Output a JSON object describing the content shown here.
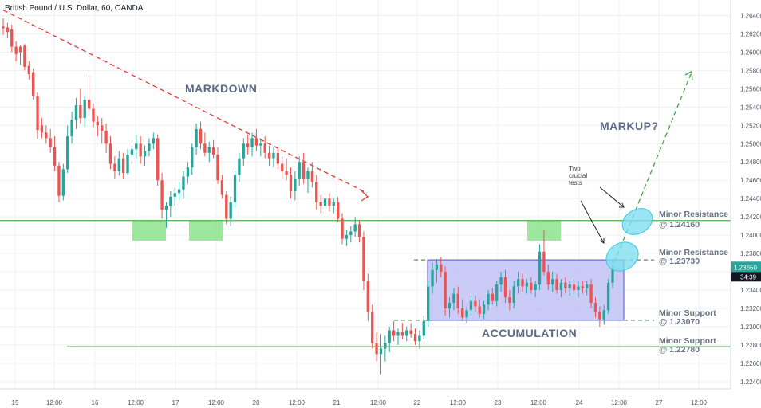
{
  "header": {
    "title": "British Pound / U.S. Dollar, 60, OANDA"
  },
  "colors": {
    "up": "#26a69a",
    "down": "#ef5350",
    "grid": "#eef0f3",
    "green_line": "#4caf50",
    "green_zone": "#8ee28e",
    "box_fill": "#b9b9f5",
    "box_stroke": "#6a6ad8",
    "ellipse": "#7fdff0",
    "red_dash": "#e53935",
    "current_price_bg": "#26a69a",
    "timer_bg": "#131722"
  },
  "chart_data": {
    "type": "candlestick",
    "symbol": "GBP/USD",
    "timeframe": "60",
    "ylim": [
      1.2232,
      1.2657
    ],
    "y_ticks": [
      "1.26400",
      "1.26200",
      "1.26000",
      "1.25800",
      "1.25600",
      "1.25400",
      "1.25200",
      "1.25000",
      "1.24800",
      "1.24600",
      "1.24400",
      "1.24200",
      "1.24000",
      "1.23800",
      "1.23600",
      "1.23400",
      "1.23200",
      "1.23000",
      "1.22800",
      "1.22600",
      "1.22400"
    ],
    "x_ticks": [
      "15",
      "12:00",
      "16",
      "12:00",
      "17",
      "12:00",
      "20",
      "12:00",
      "21",
      "12:00",
      "22",
      "12:00",
      "23",
      "12:00",
      "24",
      "12:00",
      "27",
      "12:00"
    ],
    "candles": [
      {
        "o": 1.2628,
        "h": 1.2637,
        "l": 1.2619,
        "c": 1.2626
      },
      {
        "o": 1.2627,
        "h": 1.2632,
        "l": 1.2615,
        "c": 1.2622
      },
      {
        "o": 1.2625,
        "h": 1.263,
        "l": 1.26,
        "c": 1.2606
      },
      {
        "o": 1.2606,
        "h": 1.2612,
        "l": 1.259,
        "c": 1.2598
      },
      {
        "o": 1.2606,
        "h": 1.2608,
        "l": 1.2586,
        "c": 1.26
      },
      {
        "o": 1.2607,
        "h": 1.2609,
        "l": 1.258,
        "c": 1.2584
      },
      {
        "o": 1.2585,
        "h": 1.259,
        "l": 1.257,
        "c": 1.2576
      },
      {
        "o": 1.2578,
        "h": 1.2582,
        "l": 1.2548,
        "c": 1.2552
      },
      {
        "o": 1.2552,
        "h": 1.2556,
        "l": 1.2505,
        "c": 1.2515
      },
      {
        "o": 1.252,
        "h": 1.2528,
        "l": 1.2506,
        "c": 1.2512
      },
      {
        "o": 1.2512,
        "h": 1.252,
        "l": 1.25,
        "c": 1.2506
      },
      {
        "o": 1.2506,
        "h": 1.2516,
        "l": 1.249,
        "c": 1.2496
      },
      {
        "o": 1.2496,
        "h": 1.2508,
        "l": 1.247,
        "c": 1.2476
      },
      {
        "o": 1.2476,
        "h": 1.248,
        "l": 1.2436,
        "c": 1.2443
      },
      {
        "o": 1.2443,
        "h": 1.2478,
        "l": 1.2438,
        "c": 1.2472
      },
      {
        "o": 1.2472,
        "h": 1.252,
        "l": 1.2468,
        "c": 1.2508
      },
      {
        "o": 1.2508,
        "h": 1.2535,
        "l": 1.25,
        "c": 1.2526
      },
      {
        "o": 1.2526,
        "h": 1.255,
        "l": 1.2516,
        "c": 1.2542
      },
      {
        "o": 1.2542,
        "h": 1.256,
        "l": 1.2522,
        "c": 1.2528
      },
      {
        "o": 1.2528,
        "h": 1.2552,
        "l": 1.2518,
        "c": 1.2548
      },
      {
        "o": 1.2548,
        "h": 1.2575,
        "l": 1.253,
        "c": 1.2538
      },
      {
        "o": 1.2538,
        "h": 1.2544,
        "l": 1.2518,
        "c": 1.2524
      },
      {
        "o": 1.2524,
        "h": 1.253,
        "l": 1.2508,
        "c": 1.252
      },
      {
        "o": 1.252,
        "h": 1.2528,
        "l": 1.25,
        "c": 1.2514
      },
      {
        "o": 1.2514,
        "h": 1.2522,
        "l": 1.249,
        "c": 1.25
      },
      {
        "o": 1.25,
        "h": 1.2508,
        "l": 1.2472,
        "c": 1.2478
      },
      {
        "o": 1.2478,
        "h": 1.2486,
        "l": 1.2462,
        "c": 1.247
      },
      {
        "o": 1.247,
        "h": 1.2492,
        "l": 1.2465,
        "c": 1.2484
      },
      {
        "o": 1.2484,
        "h": 1.249,
        "l": 1.2462,
        "c": 1.2468
      },
      {
        "o": 1.2468,
        "h": 1.2494,
        "l": 1.2466,
        "c": 1.2488
      },
      {
        "o": 1.2488,
        "h": 1.2498,
        "l": 1.2478,
        "c": 1.2494
      },
      {
        "o": 1.2494,
        "h": 1.251,
        "l": 1.2484,
        "c": 1.25
      },
      {
        "o": 1.25,
        "h": 1.2508,
        "l": 1.2478,
        "c": 1.2486
      },
      {
        "o": 1.2486,
        "h": 1.2498,
        "l": 1.2476,
        "c": 1.2492
      },
      {
        "o": 1.2492,
        "h": 1.2506,
        "l": 1.2486,
        "c": 1.25
      },
      {
        "o": 1.25,
        "h": 1.2512,
        "l": 1.2494,
        "c": 1.2506
      },
      {
        "o": 1.2506,
        "h": 1.251,
        "l": 1.2454,
        "c": 1.246
      },
      {
        "o": 1.246,
        "h": 1.2468,
        "l": 1.2418,
        "c": 1.2428
      },
      {
        "o": 1.2428,
        "h": 1.2436,
        "l": 1.2408,
        "c": 1.2432
      },
      {
        "o": 1.2432,
        "h": 1.2448,
        "l": 1.242,
        "c": 1.2442
      },
      {
        "o": 1.2442,
        "h": 1.2452,
        "l": 1.2432,
        "c": 1.2446
      },
      {
        "o": 1.2446,
        "h": 1.2458,
        "l": 1.2438,
        "c": 1.245
      },
      {
        "o": 1.245,
        "h": 1.247,
        "l": 1.244,
        "c": 1.2464
      },
      {
        "o": 1.2464,
        "h": 1.248,
        "l": 1.2456,
        "c": 1.2474
      },
      {
        "o": 1.2474,
        "h": 1.25,
        "l": 1.2466,
        "c": 1.2496
      },
      {
        "o": 1.2496,
        "h": 1.2522,
        "l": 1.2488,
        "c": 1.2516
      },
      {
        "o": 1.2516,
        "h": 1.2524,
        "l": 1.2494,
        "c": 1.25
      },
      {
        "o": 1.25,
        "h": 1.2512,
        "l": 1.2486,
        "c": 1.249
      },
      {
        "o": 1.249,
        "h": 1.2502,
        "l": 1.248,
        "c": 1.2496
      },
      {
        "o": 1.2496,
        "h": 1.2504,
        "l": 1.2484,
        "c": 1.2488
      },
      {
        "o": 1.2488,
        "h": 1.2496,
        "l": 1.2456,
        "c": 1.246
      },
      {
        "o": 1.246,
        "h": 1.2466,
        "l": 1.244,
        "c": 1.2444
      },
      {
        "o": 1.2444,
        "h": 1.2448,
        "l": 1.2412,
        "c": 1.2418
      },
      {
        "o": 1.2418,
        "h": 1.2442,
        "l": 1.241,
        "c": 1.2436
      },
      {
        "o": 1.2436,
        "h": 1.247,
        "l": 1.243,
        "c": 1.2466
      },
      {
        "o": 1.2466,
        "h": 1.249,
        "l": 1.2458,
        "c": 1.2484
      },
      {
        "o": 1.2484,
        "h": 1.2506,
        "l": 1.2476,
        "c": 1.25
      },
      {
        "o": 1.25,
        "h": 1.251,
        "l": 1.2488,
        "c": 1.2496
      },
      {
        "o": 1.2496,
        "h": 1.2512,
        "l": 1.2486,
        "c": 1.2506
      },
      {
        "o": 1.2506,
        "h": 1.2516,
        "l": 1.2492,
        "c": 1.2498
      },
      {
        "o": 1.2498,
        "h": 1.2506,
        "l": 1.2486,
        "c": 1.25
      },
      {
        "o": 1.25,
        "h": 1.2508,
        "l": 1.2484,
        "c": 1.249
      },
      {
        "o": 1.249,
        "h": 1.2498,
        "l": 1.2476,
        "c": 1.2484
      },
      {
        "o": 1.2484,
        "h": 1.2496,
        "l": 1.2474,
        "c": 1.249
      },
      {
        "o": 1.249,
        "h": 1.2496,
        "l": 1.2472,
        "c": 1.2478
      },
      {
        "o": 1.2478,
        "h": 1.2486,
        "l": 1.2462,
        "c": 1.247
      },
      {
        "o": 1.247,
        "h": 1.2484,
        "l": 1.246,
        "c": 1.2466
      },
      {
        "o": 1.2466,
        "h": 1.2474,
        "l": 1.244,
        "c": 1.2448
      },
      {
        "o": 1.2448,
        "h": 1.247,
        "l": 1.2438,
        "c": 1.2462
      },
      {
        "o": 1.2462,
        "h": 1.2486,
        "l": 1.2454,
        "c": 1.248
      },
      {
        "o": 1.248,
        "h": 1.249,
        "l": 1.2456,
        "c": 1.2462
      },
      {
        "o": 1.2462,
        "h": 1.2474,
        "l": 1.2446,
        "c": 1.247
      },
      {
        "o": 1.247,
        "h": 1.248,
        "l": 1.2452,
        "c": 1.2458
      },
      {
        "o": 1.2458,
        "h": 1.2466,
        "l": 1.2428,
        "c": 1.2436
      },
      {
        "o": 1.2436,
        "h": 1.2444,
        "l": 1.2424,
        "c": 1.2432
      },
      {
        "o": 1.2432,
        "h": 1.2446,
        "l": 1.2426,
        "c": 1.244
      },
      {
        "o": 1.244,
        "h": 1.2446,
        "l": 1.2426,
        "c": 1.2432
      },
      {
        "o": 1.2432,
        "h": 1.244,
        "l": 1.2424,
        "c": 1.2436
      },
      {
        "o": 1.2436,
        "h": 1.2442,
        "l": 1.2414,
        "c": 1.2418
      },
      {
        "o": 1.2418,
        "h": 1.2424,
        "l": 1.239,
        "c": 1.2396
      },
      {
        "o": 1.2396,
        "h": 1.2406,
        "l": 1.2388,
        "c": 1.24
      },
      {
        "o": 1.24,
        "h": 1.241,
        "l": 1.2392,
        "c": 1.2404
      },
      {
        "o": 1.2404,
        "h": 1.242,
        "l": 1.2398,
        "c": 1.2412
      },
      {
        "o": 1.2412,
        "h": 1.2416,
        "l": 1.2392,
        "c": 1.2398
      },
      {
        "o": 1.2398,
        "h": 1.2404,
        "l": 1.234,
        "c": 1.235
      },
      {
        "o": 1.235,
        "h": 1.2358,
        "l": 1.2306,
        "c": 1.2316
      },
      {
        "o": 1.2316,
        "h": 1.2324,
        "l": 1.2276,
        "c": 1.2282
      },
      {
        "o": 1.2282,
        "h": 1.2294,
        "l": 1.2262,
        "c": 1.227
      },
      {
        "o": 1.227,
        "h": 1.2292,
        "l": 1.2248,
        "c": 1.2276
      },
      {
        "o": 1.2276,
        "h": 1.229,
        "l": 1.2262,
        "c": 1.2282
      },
      {
        "o": 1.2282,
        "h": 1.23,
        "l": 1.2272,
        "c": 1.2296
      },
      {
        "o": 1.2296,
        "h": 1.2306,
        "l": 1.2284,
        "c": 1.229
      },
      {
        "o": 1.229,
        "h": 1.2298,
        "l": 1.228,
        "c": 1.2294
      },
      {
        "o": 1.2294,
        "h": 1.2304,
        "l": 1.2286,
        "c": 1.229
      },
      {
        "o": 1.229,
        "h": 1.23,
        "l": 1.2284,
        "c": 1.2296
      },
      {
        "o": 1.2296,
        "h": 1.2304,
        "l": 1.2288,
        "c": 1.2292
      },
      {
        "o": 1.2292,
        "h": 1.2298,
        "l": 1.228,
        "c": 1.2284
      },
      {
        "o": 1.2284,
        "h": 1.2296,
        "l": 1.2276,
        "c": 1.229
      },
      {
        "o": 1.229,
        "h": 1.2312,
        "l": 1.2286,
        "c": 1.2306
      },
      {
        "o": 1.2306,
        "h": 1.235,
        "l": 1.23,
        "c": 1.2344
      },
      {
        "o": 1.2344,
        "h": 1.237,
        "l": 1.2336,
        "c": 1.2362
      },
      {
        "o": 1.2362,
        "h": 1.2374,
        "l": 1.2348,
        "c": 1.2368
      },
      {
        "o": 1.2368,
        "h": 1.2376,
        "l": 1.2354,
        "c": 1.236
      },
      {
        "o": 1.236,
        "h": 1.2366,
        "l": 1.2312,
        "c": 1.232
      },
      {
        "o": 1.232,
        "h": 1.2332,
        "l": 1.231,
        "c": 1.2326
      },
      {
        "o": 1.2326,
        "h": 1.2342,
        "l": 1.2318,
        "c": 1.2336
      },
      {
        "o": 1.2336,
        "h": 1.2344,
        "l": 1.2314,
        "c": 1.232
      },
      {
        "o": 1.232,
        "h": 1.233,
        "l": 1.2306,
        "c": 1.231
      },
      {
        "o": 1.231,
        "h": 1.2322,
        "l": 1.2304,
        "c": 1.2318
      },
      {
        "o": 1.2318,
        "h": 1.2334,
        "l": 1.2312,
        "c": 1.2328
      },
      {
        "o": 1.2328,
        "h": 1.2334,
        "l": 1.2316,
        "c": 1.2322
      },
      {
        "o": 1.2322,
        "h": 1.233,
        "l": 1.231,
        "c": 1.2314
      },
      {
        "o": 1.2314,
        "h": 1.2328,
        "l": 1.2308,
        "c": 1.2324
      },
      {
        "o": 1.2324,
        "h": 1.234,
        "l": 1.2318,
        "c": 1.2336
      },
      {
        "o": 1.2336,
        "h": 1.2342,
        "l": 1.2324,
        "c": 1.2328
      },
      {
        "o": 1.2328,
        "h": 1.235,
        "l": 1.2322,
        "c": 1.2346
      },
      {
        "o": 1.2346,
        "h": 1.236,
        "l": 1.2338,
        "c": 1.2354
      },
      {
        "o": 1.2354,
        "h": 1.2362,
        "l": 1.2326,
        "c": 1.2332
      },
      {
        "o": 1.2332,
        "h": 1.234,
        "l": 1.2318,
        "c": 1.2326
      },
      {
        "o": 1.2326,
        "h": 1.235,
        "l": 1.232,
        "c": 1.2344
      },
      {
        "o": 1.2344,
        "h": 1.236,
        "l": 1.2336,
        "c": 1.2352
      },
      {
        "o": 1.2352,
        "h": 1.2358,
        "l": 1.2338,
        "c": 1.2344
      },
      {
        "o": 1.2344,
        "h": 1.2352,
        "l": 1.2336,
        "c": 1.2348
      },
      {
        "o": 1.2348,
        "h": 1.2354,
        "l": 1.2336,
        "c": 1.234
      },
      {
        "o": 1.234,
        "h": 1.235,
        "l": 1.2332,
        "c": 1.2346
      },
      {
        "o": 1.2346,
        "h": 1.239,
        "l": 1.234,
        "c": 1.2382
      },
      {
        "o": 1.2382,
        "h": 1.2406,
        "l": 1.2356,
        "c": 1.236
      },
      {
        "o": 1.236,
        "h": 1.2368,
        "l": 1.234,
        "c": 1.2346
      },
      {
        "o": 1.2346,
        "h": 1.236,
        "l": 1.2338,
        "c": 1.2352
      },
      {
        "o": 1.2352,
        "h": 1.2358,
        "l": 1.2336,
        "c": 1.234
      },
      {
        "o": 1.234,
        "h": 1.2352,
        "l": 1.2332,
        "c": 1.2348
      },
      {
        "o": 1.2348,
        "h": 1.2354,
        "l": 1.2336,
        "c": 1.2342
      },
      {
        "o": 1.2342,
        "h": 1.235,
        "l": 1.2334,
        "c": 1.2346
      },
      {
        "o": 1.2346,
        "h": 1.2352,
        "l": 1.2336,
        "c": 1.234
      },
      {
        "o": 1.234,
        "h": 1.235,
        "l": 1.2332,
        "c": 1.2344
      },
      {
        "o": 1.2344,
        "h": 1.235,
        "l": 1.2336,
        "c": 1.2342
      },
      {
        "o": 1.2342,
        "h": 1.235,
        "l": 1.2334,
        "c": 1.2346
      },
      {
        "o": 1.2346,
        "h": 1.2352,
        "l": 1.232,
        "c": 1.2326
      },
      {
        "o": 1.2326,
        "h": 1.2332,
        "l": 1.231,
        "c": 1.2316
      },
      {
        "o": 1.2316,
        "h": 1.2322,
        "l": 1.23,
        "c": 1.2308
      },
      {
        "o": 1.2308,
        "h": 1.2324,
        "l": 1.2302,
        "c": 1.2318
      },
      {
        "o": 1.2318,
        "h": 1.2352,
        "l": 1.2314,
        "c": 1.2348
      },
      {
        "o": 1.2348,
        "h": 1.2372,
        "l": 1.2342,
        "c": 1.2365
      }
    ],
    "levels": [
      {
        "name": "Minor Resistance",
        "value": "@ 1.24160",
        "price": 1.2416,
        "style": "solid"
      },
      {
        "name": "Minor Resistance",
        "value": "@ 1.23730",
        "price": 1.2373,
        "style": "dashed"
      },
      {
        "name": "Minor Support",
        "value": "@ 1.23070",
        "price": 1.2307,
        "style": "dashed"
      },
      {
        "name": "Minor Support",
        "value": "@ 1.22780",
        "price": 1.2278,
        "style": "solid"
      }
    ],
    "phases": [
      "MARKDOWN",
      "MARKUP?",
      "ACCUMULATION"
    ],
    "annotation": [
      "Two",
      "crucial",
      "tests"
    ],
    "current_price": "1.23650",
    "countdown": "34:39"
  }
}
